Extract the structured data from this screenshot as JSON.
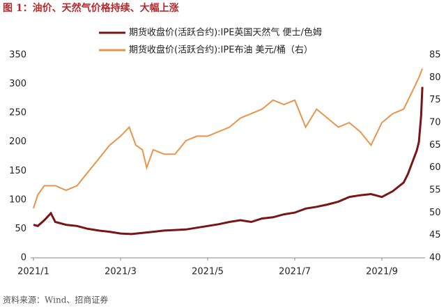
{
  "chart_data": {
    "type": "line",
    "title": "图 1：油价、天然气价格持续、大幅上涨",
    "source": "资料来源：Wind、招商证券",
    "xlim": [
      1,
      10
    ],
    "xticks": [
      {
        "value": 1,
        "label": "2021/1"
      },
      {
        "value": 3,
        "label": "2021/3"
      },
      {
        "value": 5,
        "label": "2021/5"
      },
      {
        "value": 7,
        "label": "2021/7"
      },
      {
        "value": 9,
        "label": "2021/9"
      }
    ],
    "ylim": [
      0,
      350
    ],
    "yticks": [
      0,
      50,
      100,
      150,
      200,
      250,
      300,
      350
    ],
    "y2lim": [
      40,
      85
    ],
    "y2ticks": [
      40,
      45,
      50,
      55,
      60,
      65,
      70,
      75,
      80,
      85
    ],
    "legend": "top",
    "series": [
      {
        "name": "期货收盘价(活跃合约):IPE英国天然气 便士/色姆",
        "color": "#7b1416",
        "x": [
          1.0,
          1.1,
          1.25,
          1.4,
          1.5,
          1.75,
          2.0,
          2.25,
          2.5,
          2.75,
          3.0,
          3.25,
          3.5,
          3.75,
          4.0,
          4.25,
          4.5,
          4.75,
          5.0,
          5.25,
          5.5,
          5.75,
          6.0,
          6.25,
          6.5,
          6.75,
          7.0,
          7.25,
          7.5,
          7.75,
          8.0,
          8.25,
          8.5,
          8.75,
          9.0,
          9.25,
          9.5,
          9.6,
          9.7,
          9.8,
          9.85,
          9.9,
          9.93
        ],
        "values": [
          57,
          55,
          65,
          77,
          62,
          57,
          55,
          50,
          47,
          45,
          42,
          41,
          43,
          45,
          47,
          48,
          49,
          52,
          55,
          58,
          62,
          65,
          62,
          68,
          70,
          75,
          78,
          85,
          88,
          92,
          97,
          105,
          108,
          110,
          105,
          115,
          130,
          145,
          165,
          185,
          200,
          245,
          295
        ]
      },
      {
        "name": "期货收盘价(活跃合约):IPE布油 美元/桶（右）",
        "color": "#e8954b",
        "axis": "y2",
        "x": [
          1.0,
          1.1,
          1.25,
          1.5,
          1.75,
          2.0,
          2.25,
          2.5,
          2.75,
          3.0,
          3.2,
          3.35,
          3.5,
          3.6,
          3.75,
          4.0,
          4.25,
          4.5,
          4.75,
          5.0,
          5.25,
          5.5,
          5.75,
          6.0,
          6.25,
          6.5,
          6.75,
          7.0,
          7.25,
          7.5,
          7.75,
          8.0,
          8.25,
          8.5,
          8.75,
          9.0,
          9.25,
          9.5,
          9.75,
          9.85,
          9.93
        ],
        "values": [
          51,
          54,
          56,
          56,
          55,
          56,
          59,
          62,
          65,
          67,
          69,
          65,
          64,
          60,
          64,
          63,
          63,
          66,
          67,
          67,
          68,
          69,
          71,
          72,
          73,
          75,
          74,
          75,
          69,
          73,
          71,
          69,
          70,
          68,
          65,
          70,
          72,
          73,
          78,
          80,
          82
        ]
      }
    ]
  }
}
